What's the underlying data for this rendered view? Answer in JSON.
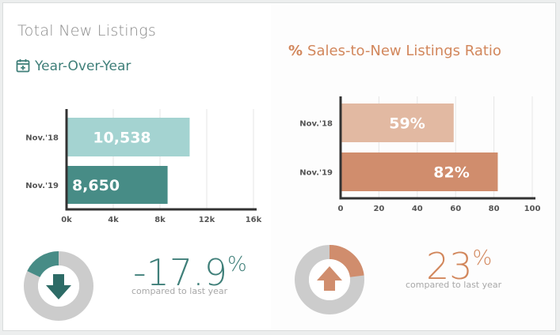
{
  "card": {
    "title": "Total New Listings",
    "subtitle": "Year-Over-Year"
  },
  "ratio": {
    "title": "Sales-to-New Listings Ratio",
    "title_symbol": "%"
  },
  "colors": {
    "teal_light": "#a4d3d1",
    "teal_dark": "#478c86",
    "peach_light": "#e2b9a2",
    "peach_dark": "#d08d6d",
    "donut_gray": "#cccccc",
    "axis": "#333333"
  },
  "chart_data": [
    {
      "type": "bar",
      "orientation": "horizontal",
      "categories": [
        "Nov.'18",
        "Nov.'19"
      ],
      "values": [
        10538,
        8650
      ],
      "data_labels": [
        "10,538",
        "8,650"
      ],
      "xlim": [
        0,
        16000
      ],
      "xticks": [
        0,
        4000,
        8000,
        12000,
        16000
      ],
      "xtick_labels": [
        "0k",
        "4k",
        "8k",
        "12k",
        "16k"
      ],
      "grid": true
    },
    {
      "type": "bar",
      "orientation": "horizontal",
      "categories": [
        "Nov.'18",
        "Nov.'19"
      ],
      "values": [
        59,
        82
      ],
      "data_labels": [
        "59%",
        "82%"
      ],
      "xlim": [
        0,
        100
      ],
      "xticks": [
        0,
        20,
        40,
        60,
        80,
        100
      ],
      "xtick_labels": [
        "0",
        "20",
        "40",
        "60",
        "80",
        "100"
      ],
      "grid": true
    }
  ],
  "kpi_left": {
    "value": "-17.9",
    "unit": "%",
    "caption": "compared to last year",
    "donut_fraction": 0.179,
    "arrow": "arrow-down-icon"
  },
  "kpi_right": {
    "value": "23",
    "unit": "%",
    "caption": "compared to last year",
    "donut_fraction": 0.23,
    "arrow": "arrow-up-icon"
  }
}
